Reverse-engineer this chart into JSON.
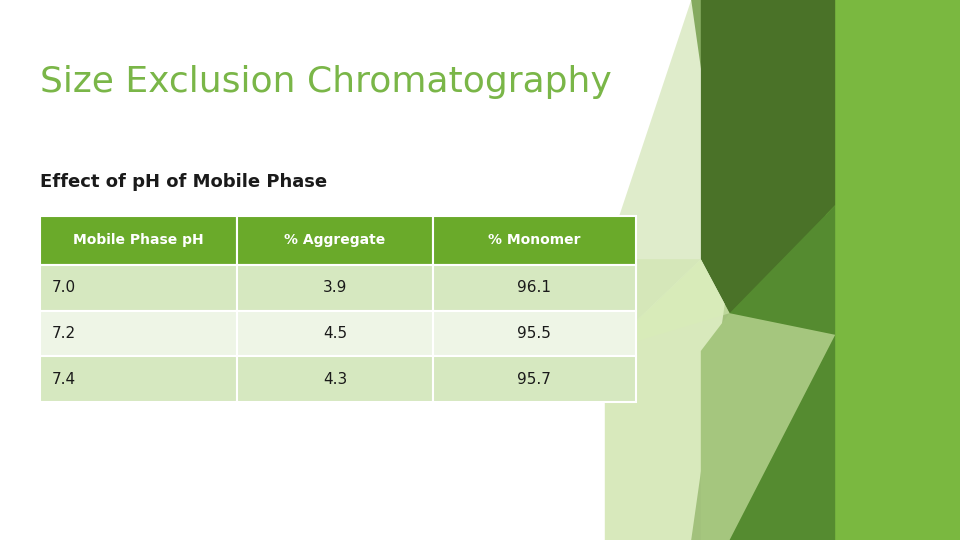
{
  "title": "Size Exclusion Chromatography",
  "subtitle": "Effect of pH of Mobile Phase",
  "title_color": "#7ab648",
  "subtitle_color": "#1a1a1a",
  "background_color": "#ffffff",
  "table_headers": [
    "Mobile Phase pH",
    "% Aggregate",
    "% Monomer"
  ],
  "table_rows": [
    [
      "7.0",
      "3.9",
      "96.1"
    ],
    [
      "7.2",
      "4.5",
      "95.5"
    ],
    [
      "7.4",
      "4.3",
      "95.7"
    ]
  ],
  "header_bg": "#6aaa2a",
  "header_text_color": "#ffffff",
  "row_bg_odd": "#d6e8c0",
  "row_bg_even": "#eef5e6",
  "row_text_color": "#1a1a1a",
  "deco_bright_green": "#7ab648",
  "deco_dark_green": "#4a7a28",
  "deco_mid_green": "#558b2f",
  "deco_light_green": "#c8e0a0",
  "deco_very_light": "#ddefc0"
}
